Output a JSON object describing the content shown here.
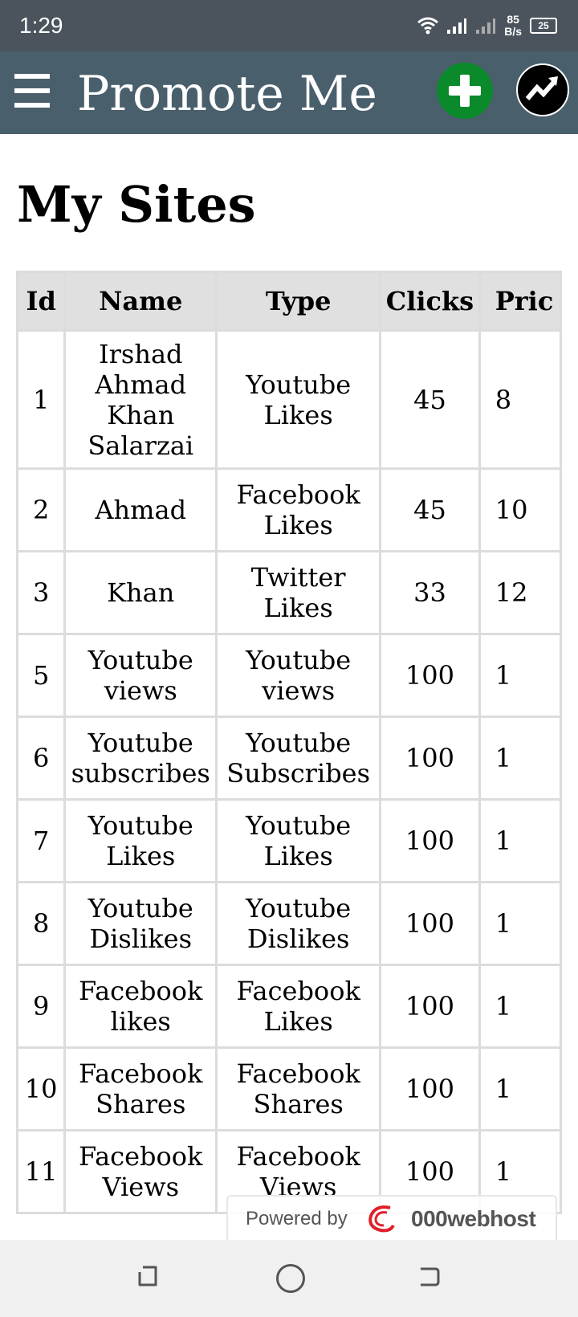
{
  "status_bar": {
    "time": "1:29",
    "net_speed_value": "85",
    "net_speed_unit": "B/s",
    "battery": "25",
    "icons": [
      "wifi-icon",
      "signal-icon",
      "signal-weak-icon",
      "battery-icon"
    ]
  },
  "app_bar": {
    "title": "Promote Me",
    "menu_icon": "hamburger-menu-icon",
    "add_icon": "plus-icon",
    "add_color": "#0a8a2a",
    "trend_icon": "trending-up-icon",
    "background": "#4a5f6c"
  },
  "page": {
    "heading": "My Sites"
  },
  "table": {
    "headers": [
      "Id",
      "Name",
      "Type",
      "Clicks",
      "Pric"
    ],
    "rows": [
      {
        "id": "1",
        "name": "Irshad Ahmad Khan Salarzai",
        "type": "Youtube Likes",
        "clicks": "45",
        "price": "8"
      },
      {
        "id": "2",
        "name": "Ahmad",
        "type": "Facebook Likes",
        "clicks": "45",
        "price": "10"
      },
      {
        "id": "3",
        "name": "Khan",
        "type": "Twitter Likes",
        "clicks": "33",
        "price": "12"
      },
      {
        "id": "5",
        "name": "Youtube views",
        "type": "Youtube views",
        "clicks": "100",
        "price": "1"
      },
      {
        "id": "6",
        "name": "Youtube subscribes",
        "type": "Youtube Subscribes",
        "clicks": "100",
        "price": "1"
      },
      {
        "id": "7",
        "name": "Youtube Likes",
        "type": "Youtube Likes",
        "clicks": "100",
        "price": "1"
      },
      {
        "id": "8",
        "name": "Youtube Dislikes",
        "type": "Youtube Dislikes",
        "clicks": "100",
        "price": "1"
      },
      {
        "id": "9",
        "name": "Facebook likes",
        "type": "Facebook Likes",
        "clicks": "100",
        "price": "1"
      },
      {
        "id": "10",
        "name": "Facebook Shares",
        "type": "Facebook Shares",
        "clicks": "100",
        "price": "1"
      },
      {
        "id": "11",
        "name": "Facebook Views",
        "type": "Facebook Views",
        "clicks": "100",
        "price": "1"
      }
    ]
  },
  "badge": {
    "powered_by": "Powered by",
    "brand": "000webhost"
  },
  "nav_bar": {
    "icons": [
      "back-icon",
      "home-icon",
      "recents-icon"
    ]
  }
}
